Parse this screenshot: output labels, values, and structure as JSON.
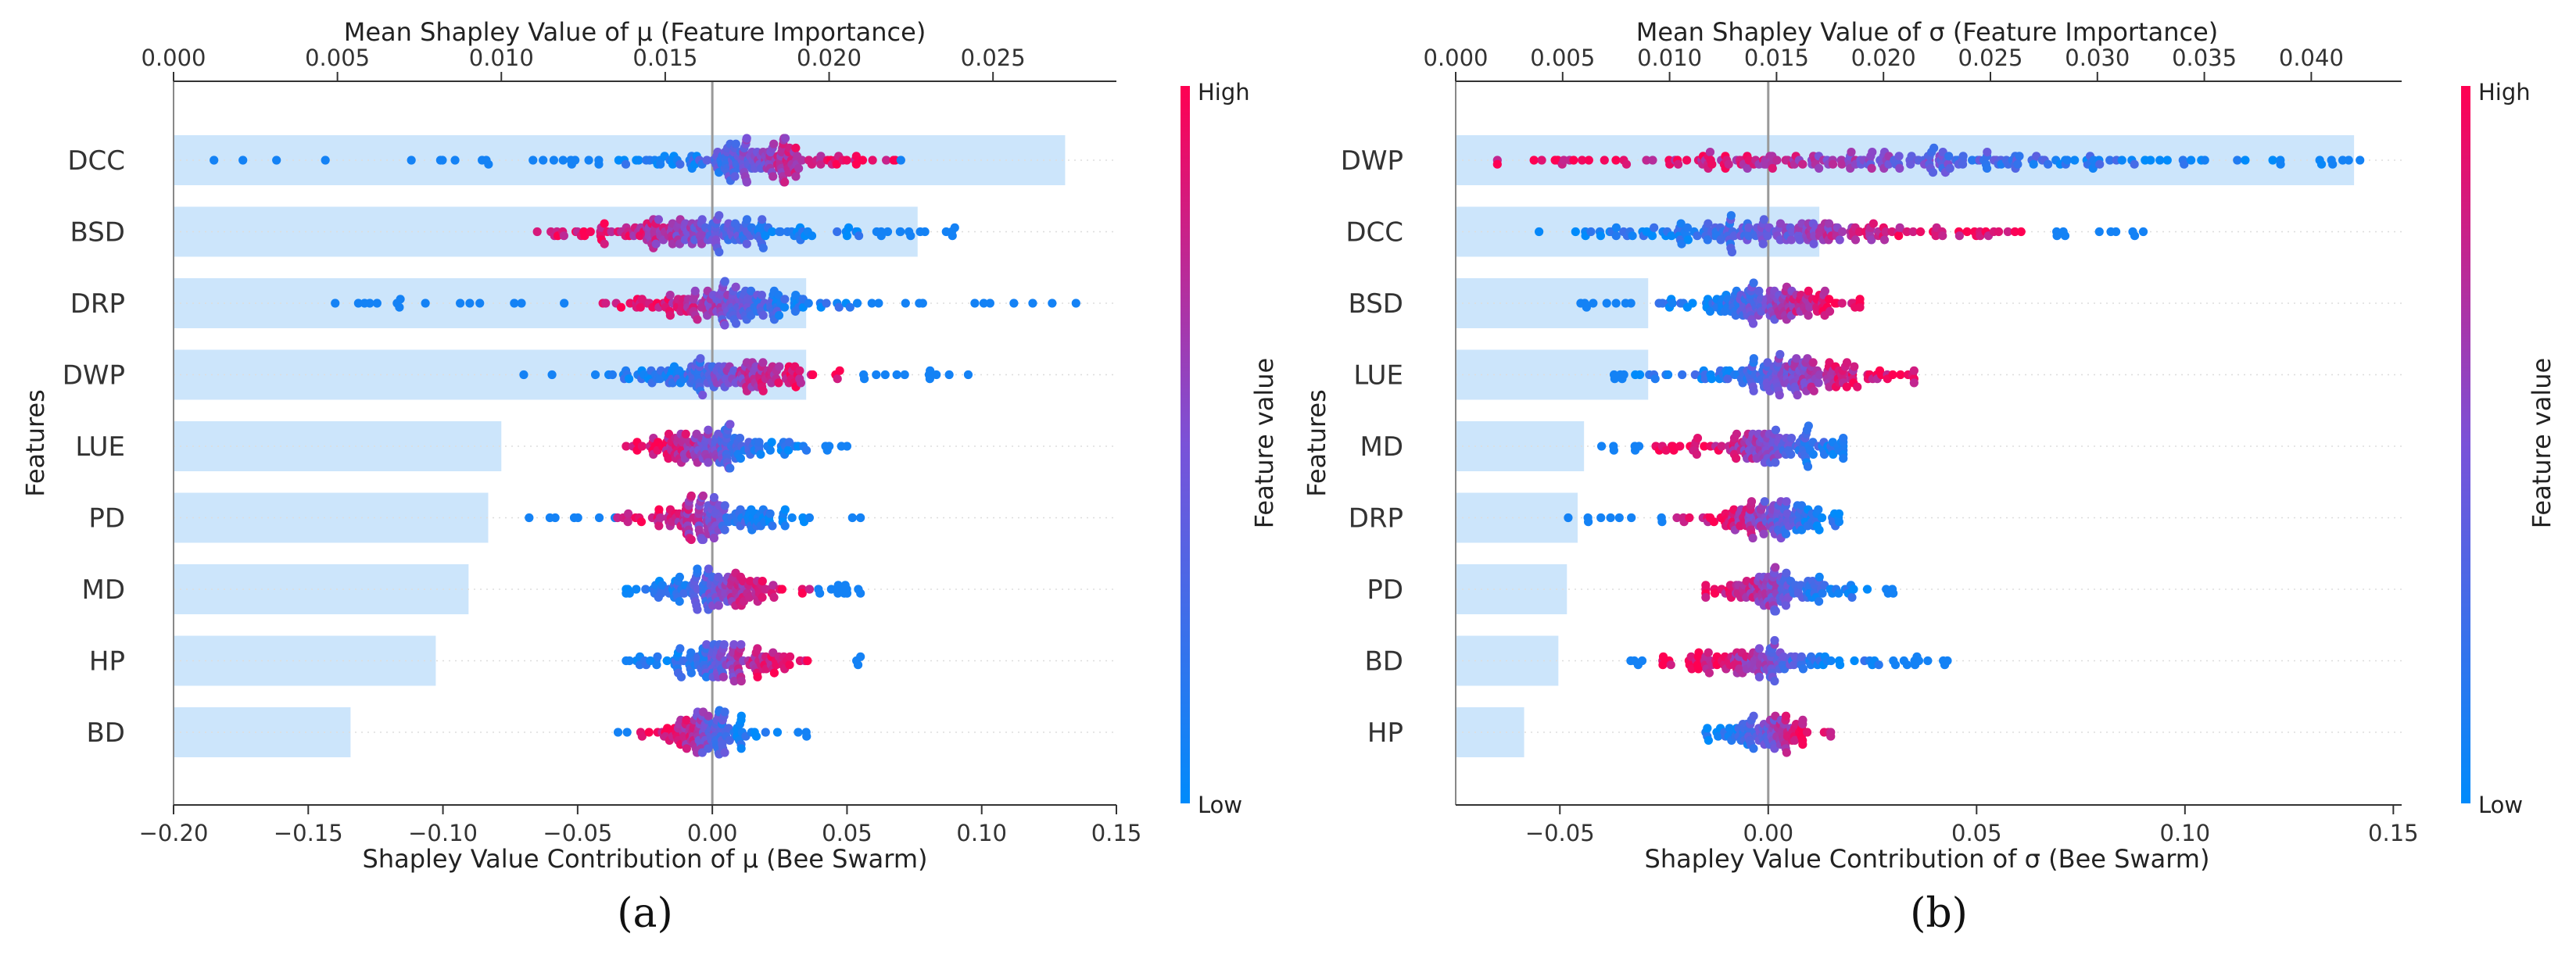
{
  "chart_data": [
    {
      "panel": "(a)",
      "type": "scatter",
      "subtype": "shap-beeswarm-with-importance-bars",
      "title_top": "Mean Shapley Value of μ (Feature Importance)",
      "xlabel": "Shapley Value Contribution of μ (Bee Swarm)",
      "ylabel": "Features",
      "colorbar": {
        "label": "Feature value",
        "high": "High",
        "low": "Low"
      },
      "swarm_axis": {
        "range": [
          -0.2,
          0.15
        ],
        "ticks": [
          -0.2,
          -0.15,
          -0.1,
          -0.05,
          0.0,
          0.05,
          0.1,
          0.15
        ],
        "tick_labels": [
          "−0.20",
          "−0.15",
          "−0.10",
          "−0.05",
          "0.00",
          "0.05",
          "0.10",
          "0.15"
        ]
      },
      "importance_axis": {
        "range": [
          0,
          0.0275
        ],
        "ticks": [
          0,
          0.005,
          0.01,
          0.015,
          0.02,
          0.025
        ],
        "tick_labels": [
          "0.000",
          "0.005",
          "0.010",
          "0.015",
          "0.020",
          "0.025"
        ]
      },
      "features": [
        {
          "name": "DCC",
          "importance": 0.0272,
          "swarm": {
            "min": -0.185,
            "max": 0.07,
            "center": 0.015,
            "sd": 0.018,
            "n": 190,
            "hiShift": 0.008
          }
        },
        {
          "name": "BSD",
          "importance": 0.0227,
          "swarm": {
            "min": -0.065,
            "max": 0.09,
            "center": -0.005,
            "sd": 0.022,
            "n": 190,
            "hiShift": -0.025
          }
        },
        {
          "name": "DRP",
          "importance": 0.0193,
          "swarm": {
            "min": -0.14,
            "max": 0.135,
            "center": 0.005,
            "sd": 0.018,
            "n": 190,
            "hiShift": -0.013
          }
        },
        {
          "name": "DWP",
          "importance": 0.0193,
          "swarm": {
            "min": -0.07,
            "max": 0.095,
            "center": 0.005,
            "sd": 0.016,
            "n": 170,
            "hiShift": 0.005
          }
        },
        {
          "name": "LUE",
          "importance": 0.01,
          "swarm": {
            "min": -0.032,
            "max": 0.05,
            "center": 0.0,
            "sd": 0.012,
            "n": 150,
            "hiShift": -0.005
          }
        },
        {
          "name": "PD",
          "importance": 0.0096,
          "swarm": {
            "min": -0.068,
            "max": 0.055,
            "center": 0.0,
            "sd": 0.012,
            "n": 150,
            "hiShift": -0.002
          }
        },
        {
          "name": "MD",
          "importance": 0.009,
          "swarm": {
            "min": -0.032,
            "max": 0.055,
            "center": 0.003,
            "sd": 0.012,
            "n": 150,
            "hiShift": 0.012
          }
        },
        {
          "name": "HP",
          "importance": 0.008,
          "swarm": {
            "min": -0.032,
            "max": 0.055,
            "center": 0.005,
            "sd": 0.011,
            "n": 140,
            "hiShift": 0.01
          }
        },
        {
          "name": "BD",
          "importance": 0.0054,
          "swarm": {
            "min": -0.035,
            "max": 0.035,
            "center": -0.002,
            "sd": 0.009,
            "n": 120,
            "hiShift": -0.004
          }
        }
      ]
    },
    {
      "panel": "(b)",
      "type": "scatter",
      "subtype": "shap-beeswarm-with-importance-bars",
      "title_top": "Mean Shapley Value of σ (Feature Importance)",
      "xlabel": "Shapley Value Contribution of σ (Bee Swarm)",
      "ylabel": "Features",
      "colorbar": {
        "label": "Feature value",
        "high": "High",
        "low": "Low"
      },
      "swarm_axis": {
        "range": [
          -0.075,
          0.152
        ],
        "ticks": [
          -0.05,
          0.0,
          0.05,
          0.1,
          0.15
        ],
        "tick_labels": [
          "−0.05",
          "0.00",
          "0.05",
          "0.10",
          "0.15"
        ]
      },
      "importance_axis": {
        "range": [
          0,
          0.0428
        ],
        "ticks": [
          0,
          0.005,
          0.01,
          0.015,
          0.02,
          0.025,
          0.03,
          0.035,
          0.04
        ],
        "tick_labels": [
          "0.000",
          "0.005",
          "0.010",
          "0.015",
          "0.020",
          "0.025",
          "0.030",
          "0.035",
          "0.040"
        ]
      },
      "features": [
        {
          "name": "DWP",
          "importance": 0.042,
          "swarm": {
            "min": -0.065,
            "max": 0.142,
            "center": 0.03,
            "sd": 0.035,
            "n": 220,
            "hiShift": -0.05
          }
        },
        {
          "name": "DCC",
          "importance": 0.017,
          "swarm": {
            "min": -0.055,
            "max": 0.09,
            "center": 0.005,
            "sd": 0.02,
            "n": 200,
            "hiShift": 0.01
          }
        },
        {
          "name": "BSD",
          "importance": 0.009,
          "swarm": {
            "min": -0.045,
            "max": 0.022,
            "center": 0.0,
            "sd": 0.01,
            "n": 160,
            "hiShift": 0.01
          }
        },
        {
          "name": "LUE",
          "importance": 0.009,
          "swarm": {
            "min": -0.037,
            "max": 0.035,
            "center": 0.004,
            "sd": 0.012,
            "n": 180,
            "hiShift": 0.008
          }
        },
        {
          "name": "MD",
          "importance": 0.006,
          "swarm": {
            "min": -0.04,
            "max": 0.018,
            "center": 0.0,
            "sd": 0.01,
            "n": 140,
            "hiShift": -0.02
          }
        },
        {
          "name": "DRP",
          "importance": 0.0057,
          "swarm": {
            "min": -0.048,
            "max": 0.017,
            "center": 0.0,
            "sd": 0.008,
            "n": 140,
            "hiShift": -0.008
          }
        },
        {
          "name": "PD",
          "importance": 0.0052,
          "swarm": {
            "min": -0.015,
            "max": 0.03,
            "center": 0.002,
            "sd": 0.008,
            "n": 130,
            "hiShift": -0.005
          }
        },
        {
          "name": "BD",
          "importance": 0.0048,
          "swarm": {
            "min": -0.033,
            "max": 0.043,
            "center": 0.0,
            "sd": 0.009,
            "n": 140,
            "hiShift": -0.002
          }
        },
        {
          "name": "HP",
          "importance": 0.0032,
          "swarm": {
            "min": -0.015,
            "max": 0.015,
            "center": 0.0,
            "sd": 0.006,
            "n": 100,
            "hiShift": 0.0
          }
        }
      ]
    }
  ],
  "colors": {
    "bar": "#cce5fb",
    "low": "#008bfb",
    "high": "#ff0052",
    "zero_line": "#999999",
    "axis": "#333333",
    "grid": "#dddddd"
  }
}
